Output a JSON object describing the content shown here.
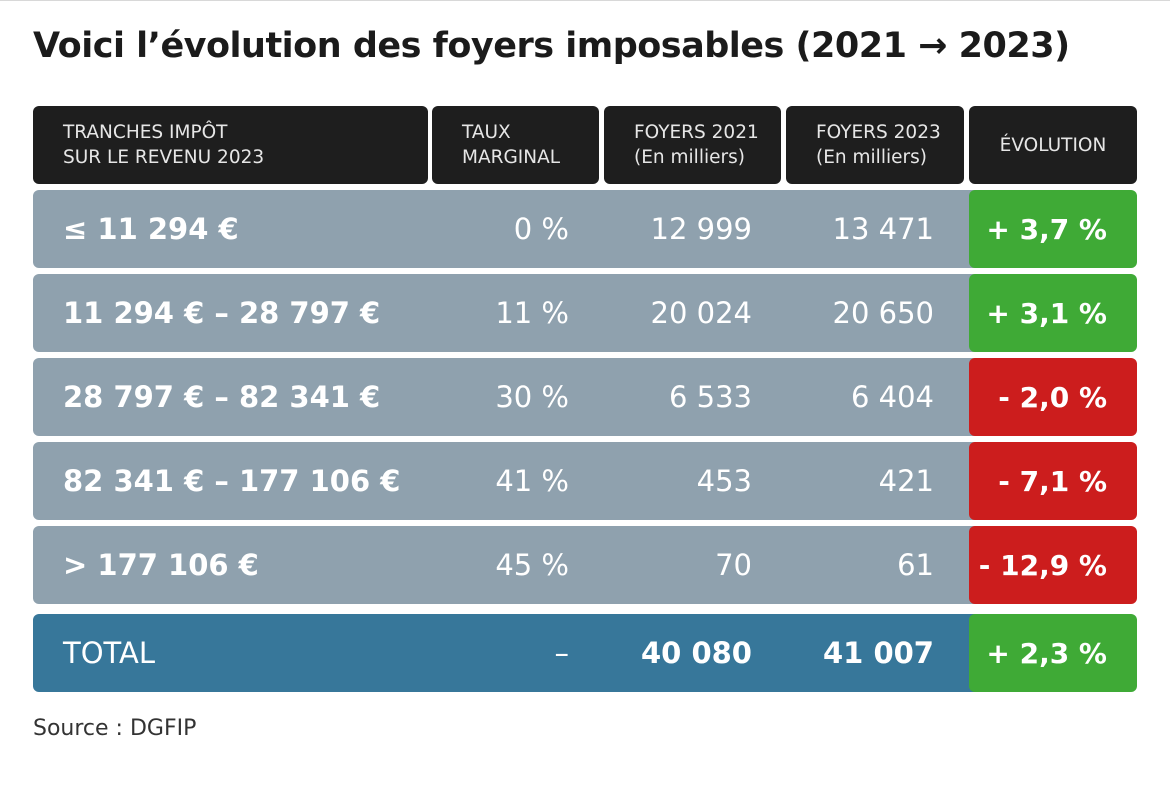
{
  "title": "Voici l’évolution des foyers imposables (2021 → 2023)",
  "chart_data": {
    "type": "table",
    "title": "Voici l’évolution des foyers imposables (2021 → 2023)",
    "columns": [
      {
        "line1": "TRANCHES IMPÔT",
        "line2": "SUR LE REVENU 2023"
      },
      {
        "line1": "TAUX",
        "line2": "MARGINAL"
      },
      {
        "line1": "FOYERS 2021",
        "line2": "(En milliers)"
      },
      {
        "line1": "FOYERS 2023",
        "line2": "(En milliers)"
      },
      {
        "line1": "ÉVOLUTION",
        "line2": ""
      }
    ],
    "rows": [
      {
        "tranche": "≤ 11 294 €",
        "taux": "0 %",
        "foyers_2021": "12 999",
        "foyers_2023": "13 471",
        "evolution": "+ 3,7 %",
        "trend": "up"
      },
      {
        "tranche": "11 294 € – 28 797 €",
        "taux": "11 %",
        "foyers_2021": "20 024",
        "foyers_2023": "20 650",
        "evolution": "+ 3,1 %",
        "trend": "up"
      },
      {
        "tranche": "28 797 € – 82 341 €",
        "taux": "30 %",
        "foyers_2021": "6 533",
        "foyers_2023": "6 404",
        "evolution": "- 2,0 %",
        "trend": "down"
      },
      {
        "tranche": "82 341 € – 177 106 €",
        "taux": "41 %",
        "foyers_2021": "453",
        "foyers_2023": "421",
        "evolution": "- 7,1 %",
        "trend": "down"
      },
      {
        "tranche": "> 177 106 €",
        "taux": "45 %",
        "foyers_2021": "70",
        "foyers_2023": "61",
        "evolution": "- 12,9 %",
        "trend": "down"
      }
    ],
    "total": {
      "label": "TOTAL",
      "taux": "–",
      "foyers_2021": "40 080",
      "foyers_2023": "41 007",
      "evolution": "+ 2,3 %",
      "trend": "up"
    }
  },
  "colors": {
    "header_bg": "#1e1e1e",
    "row_bg": "#8fa1ae",
    "total_bg": "#37779a",
    "positive": "#3faa36",
    "negative": "#cc1d1d"
  },
  "source": "Source : DGFIP"
}
